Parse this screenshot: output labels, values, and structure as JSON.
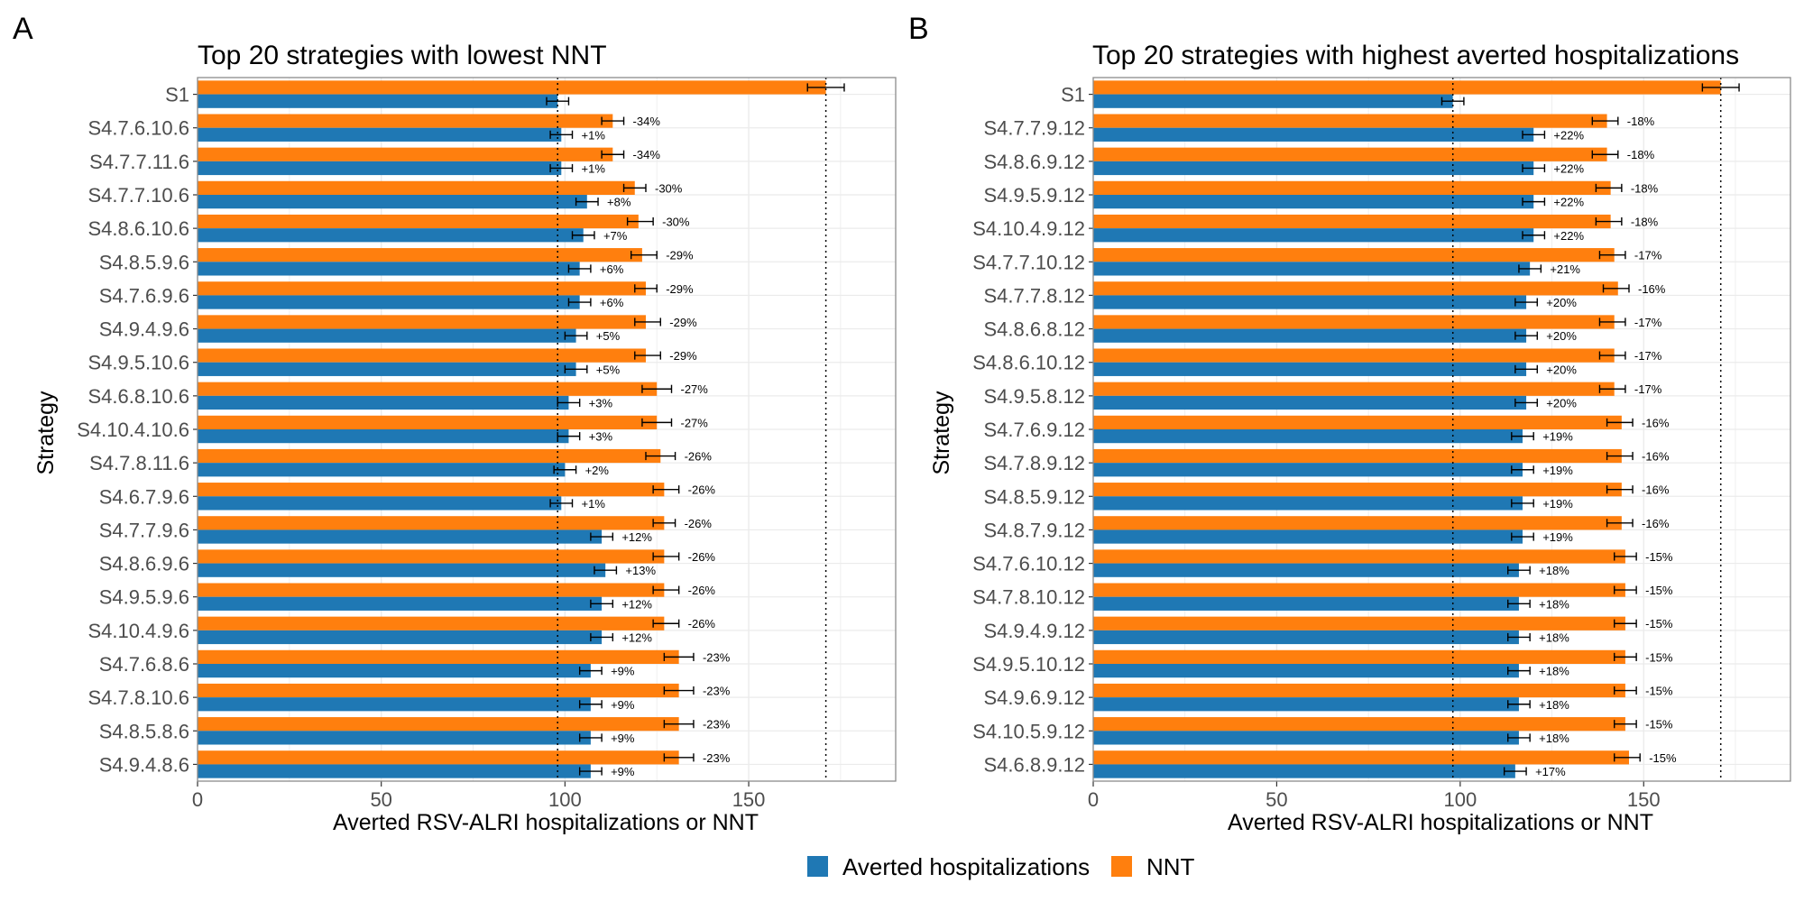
{
  "colors": {
    "averted": "#1F78B4",
    "nnt": "#FF7F0E",
    "grid": "#EBEBEB",
    "text_dark": "#000000",
    "tick_text": "#4D4D4D"
  },
  "legend": [
    {
      "label": "Averted hospitalizations",
      "color": "#1F78B4"
    },
    {
      "label": "NNT",
      "color": "#FF7F0E"
    }
  ],
  "chart_data": [
    {
      "panel": "A",
      "type": "bar",
      "orientation": "horizontal",
      "title": "Top 20 strategies with lowest NNT",
      "xlabel": "Averted RSV-ALRI hospitalizations or NNT",
      "ylabel": "Strategy",
      "xlim": [
        0,
        190
      ],
      "xticks": [
        0,
        50,
        100,
        150
      ],
      "grid": true,
      "reference_lines": [
        98,
        171
      ],
      "categories": [
        "S1",
        "S4.7.6.10.6",
        "S4.7.7.11.6",
        "S4.7.7.10.6",
        "S4.8.6.10.6",
        "S4.8.5.9.6",
        "S4.7.6.9.6",
        "S4.9.4.9.6",
        "S4.9.5.10.6",
        "S4.6.8.10.6",
        "S4.10.4.10.6",
        "S4.7.8.11.6",
        "S4.6.7.9.6",
        "S4.7.7.9.6",
        "S4.8.6.9.6",
        "S4.9.5.9.6",
        "S4.10.4.9.6",
        "S4.7.6.8.6",
        "S4.7.8.10.6",
        "S4.8.5.8.6",
        "S4.9.4.8.6"
      ],
      "series": [
        {
          "name": "NNT",
          "values": [
            171,
            113,
            113,
            119,
            120,
            121,
            122,
            122,
            122,
            125,
            125,
            126,
            127,
            127,
            127,
            127,
            127,
            131,
            131,
            131,
            131
          ],
          "error_low": [
            166,
            110,
            110,
            116,
            117,
            118,
            119,
            119,
            119,
            121,
            121,
            122,
            124,
            124,
            124,
            124,
            124,
            127,
            127,
            127,
            127
          ],
          "error_high": [
            176,
            116,
            116,
            122,
            124,
            125,
            125,
            126,
            126,
            129,
            129,
            130,
            131,
            130,
            131,
            131,
            131,
            135,
            135,
            135,
            135
          ],
          "labels": [
            "",
            "-34%",
            "-34%",
            "-30%",
            "-30%",
            "-29%",
            "-29%",
            "-29%",
            "-29%",
            "-27%",
            "-27%",
            "-26%",
            "-26%",
            "-26%",
            "-26%",
            "-26%",
            "-26%",
            "-23%",
            "-23%",
            "-23%",
            "-23%"
          ]
        },
        {
          "name": "Averted hospitalizations",
          "values": [
            98,
            99,
            99,
            106,
            105,
            104,
            104,
            103,
            103,
            101,
            101,
            100,
            99,
            110,
            111,
            110,
            110,
            107,
            107,
            107,
            107
          ],
          "error_low": [
            95,
            96,
            96,
            103,
            102,
            101,
            101,
            100,
            100,
            98,
            98,
            97,
            96,
            107,
            108,
            107,
            107,
            104,
            104,
            104,
            104
          ],
          "error_high": [
            101,
            102,
            102,
            109,
            108,
            107,
            107,
            106,
            106,
            104,
            104,
            103,
            102,
            113,
            114,
            113,
            113,
            110,
            110,
            110,
            110
          ],
          "labels": [
            "",
            "+1%",
            "+1%",
            "+8%",
            "+7%",
            "+6%",
            "+6%",
            "+5%",
            "+5%",
            "+3%",
            "+3%",
            "+2%",
            "+1%",
            "+12%",
            "+13%",
            "+12%",
            "+12%",
            "+9%",
            "+9%",
            "+9%",
            "+9%"
          ]
        }
      ]
    },
    {
      "panel": "B",
      "type": "bar",
      "orientation": "horizontal",
      "title": "Top 20 strategies with highest averted hospitalizations",
      "xlabel": "Averted RSV-ALRI hospitalizations or NNT",
      "ylabel": "Strategy",
      "xlim": [
        0,
        190
      ],
      "xticks": [
        0,
        50,
        100,
        150
      ],
      "grid": true,
      "reference_lines": [
        98,
        171
      ],
      "categories": [
        "S1",
        "S4.7.7.9.12",
        "S4.8.6.9.12",
        "S4.9.5.9.12",
        "S4.10.4.9.12",
        "S4.7.7.10.12",
        "S4.7.7.8.12",
        "S4.8.6.8.12",
        "S4.8.6.10.12",
        "S4.9.5.8.12",
        "S4.7.6.9.12",
        "S4.7.8.9.12",
        "S4.8.5.9.12",
        "S4.8.7.9.12",
        "S4.7.6.10.12",
        "S4.7.8.10.12",
        "S4.9.4.9.12",
        "S4.9.5.10.12",
        "S4.9.6.9.12",
        "S4.10.5.9.12",
        "S4.6.8.9.12"
      ],
      "series": [
        {
          "name": "NNT",
          "values": [
            171,
            140,
            140,
            141,
            141,
            142,
            143,
            142,
            142,
            142,
            144,
            144,
            144,
            144,
            145,
            145,
            145,
            145,
            145,
            145,
            146
          ],
          "error_low": [
            166,
            136,
            136,
            137,
            137,
            138,
            139,
            138,
            138,
            138,
            140,
            140,
            140,
            140,
            142,
            142,
            142,
            142,
            142,
            142,
            142
          ],
          "error_high": [
            176,
            143,
            143,
            144,
            144,
            145,
            146,
            145,
            145,
            145,
            147,
            147,
            147,
            147,
            148,
            148,
            148,
            148,
            148,
            148,
            149
          ],
          "labels": [
            "",
            "-18%",
            "-18%",
            "-18%",
            "-18%",
            "-17%",
            "-16%",
            "-17%",
            "-17%",
            "-17%",
            "-16%",
            "-16%",
            "-16%",
            "-16%",
            "-15%",
            "-15%",
            "-15%",
            "-15%",
            "-15%",
            "-15%",
            "-15%"
          ]
        },
        {
          "name": "Averted hospitalizations",
          "values": [
            98,
            120,
            120,
            120,
            120,
            119,
            118,
            118,
            118,
            118,
            117,
            117,
            117,
            117,
            116,
            116,
            116,
            116,
            116,
            116,
            115
          ],
          "error_low": [
            95,
            117,
            117,
            117,
            117,
            116,
            115,
            115,
            115,
            115,
            114,
            114,
            114,
            114,
            113,
            113,
            113,
            113,
            113,
            113,
            112
          ],
          "error_high": [
            101,
            123,
            123,
            123,
            123,
            122,
            121,
            121,
            121,
            121,
            120,
            120,
            120,
            120,
            119,
            119,
            119,
            119,
            119,
            119,
            118
          ],
          "labels": [
            "",
            "+22%",
            "+22%",
            "+22%",
            "+22%",
            "+21%",
            "+20%",
            "+20%",
            "+20%",
            "+20%",
            "+19%",
            "+19%",
            "+19%",
            "+19%",
            "+18%",
            "+18%",
            "+18%",
            "+18%",
            "+18%",
            "+18%",
            "+17%"
          ]
        }
      ]
    }
  ]
}
